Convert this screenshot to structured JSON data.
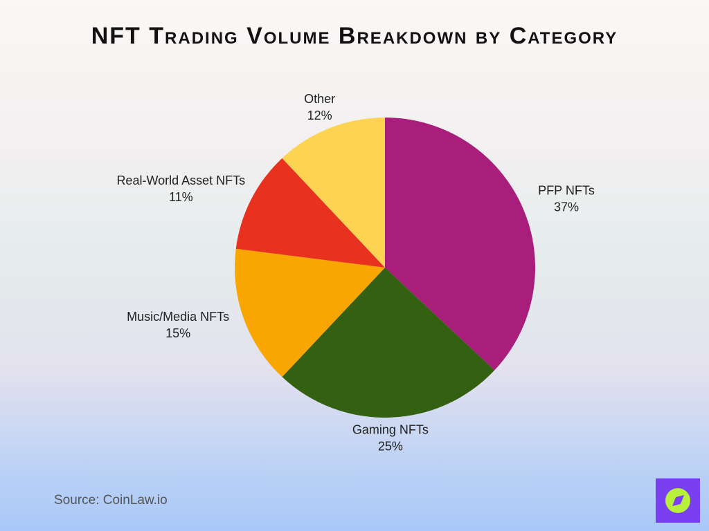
{
  "chart_data": {
    "type": "pie",
    "title": "NFT Trading Volume Breakdown by Category",
    "categories": [
      "PFP NFTs",
      "Gaming NFTs",
      "Music/Media NFTs",
      "Real-World Asset NFTs",
      "Other"
    ],
    "values": [
      37,
      25,
      15,
      11,
      12
    ],
    "value_labels": [
      "37%",
      "25%",
      "15%",
      "11%",
      "12%"
    ],
    "colors": [
      "#a81e7a",
      "#336011",
      "#f9a602",
      "#e8321f",
      "#fdd352"
    ],
    "source": "Source: CoinLaw.io"
  }
}
